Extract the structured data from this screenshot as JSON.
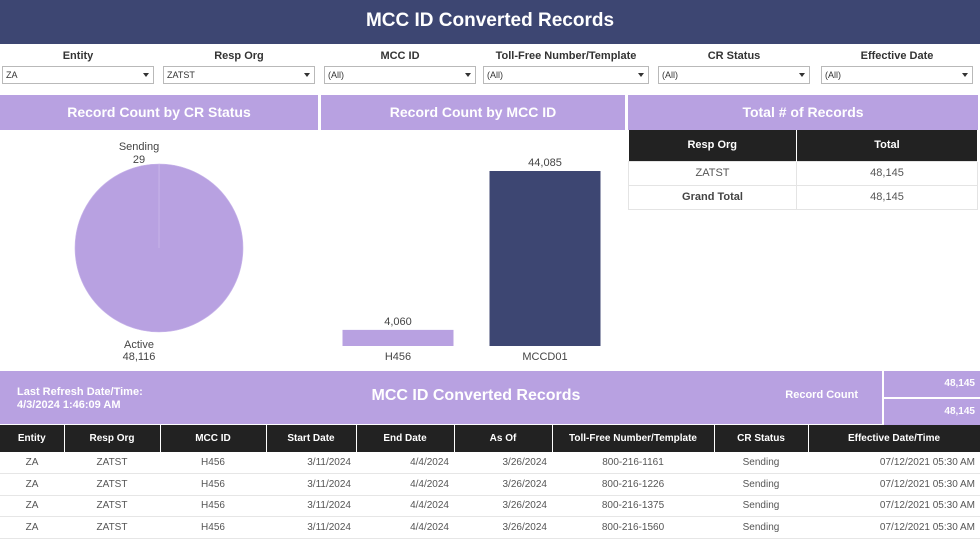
{
  "title": "MCC ID Converted Records",
  "filters": [
    {
      "label": "Entity",
      "value": "ZA"
    },
    {
      "label": "Resp Org",
      "value": "ZATST"
    },
    {
      "label": "MCC ID",
      "value": "(All)"
    },
    {
      "label": "Toll-Free Number/Template",
      "value": "(All)"
    },
    {
      "label": "CR Status",
      "value": "(All)"
    },
    {
      "label": "Effective Date",
      "value": "(All)"
    }
  ],
  "panels": {
    "cr_status_title": "Record Count by CR Status",
    "mcc_title": "Record Count by MCC ID",
    "total_title": "Total # of Records"
  },
  "chart_data": [
    {
      "type": "pie",
      "title": "Record Count by CR Status",
      "categories": [
        "Sending",
        "Active"
      ],
      "values": [
        29,
        48116
      ],
      "value_labels": [
        "29",
        "48,116"
      ],
      "colors": [
        "#b8a1e1",
        "#b8a1e1"
      ]
    },
    {
      "type": "bar",
      "title": "Record Count by MCC ID",
      "categories": [
        "H456",
        "MCCD01"
      ],
      "values": [
        4060,
        44085
      ],
      "value_labels": [
        "4,060",
        "44,085"
      ],
      "colors": [
        "#b8a1e1",
        "#3d4672"
      ]
    }
  ],
  "totals": {
    "headers": [
      "Resp Org",
      "Total"
    ],
    "rows": [
      {
        "org": "ZATST",
        "total": "48,145"
      },
      {
        "org": "Grand Total",
        "total": "48,145"
      }
    ]
  },
  "band": {
    "refresh_label": "Last Refresh Date/Time:",
    "refresh_value": "4/3/2024 1:46:09 AM",
    "title": "MCC ID Converted Records",
    "record_count_label": "Record Count",
    "record_counts": [
      "48,145",
      "48,145"
    ]
  },
  "records": {
    "headers": [
      "Entity",
      "Resp Org",
      "MCC ID",
      "Start Date",
      "End Date",
      "As Of",
      "Toll-Free Number/Template",
      "CR Status",
      "Effective Date/Time"
    ],
    "rows": [
      [
        "ZA",
        "ZATST",
        "H456",
        "3/11/2024",
        "4/4/2024",
        "3/26/2024",
        "800-216-1161",
        "Sending",
        "07/12/2021 05:30 AM"
      ],
      [
        "ZA",
        "ZATST",
        "H456",
        "3/11/2024",
        "4/4/2024",
        "3/26/2024",
        "800-216-1226",
        "Sending",
        "07/12/2021 05:30 AM"
      ],
      [
        "ZA",
        "ZATST",
        "H456",
        "3/11/2024",
        "4/4/2024",
        "3/26/2024",
        "800-216-1375",
        "Sending",
        "07/12/2021 05:30 AM"
      ],
      [
        "ZA",
        "ZATST",
        "H456",
        "3/11/2024",
        "4/4/2024",
        "3/26/2024",
        "800-216-1560",
        "Sending",
        "07/12/2021 05:30 AM"
      ]
    ]
  }
}
